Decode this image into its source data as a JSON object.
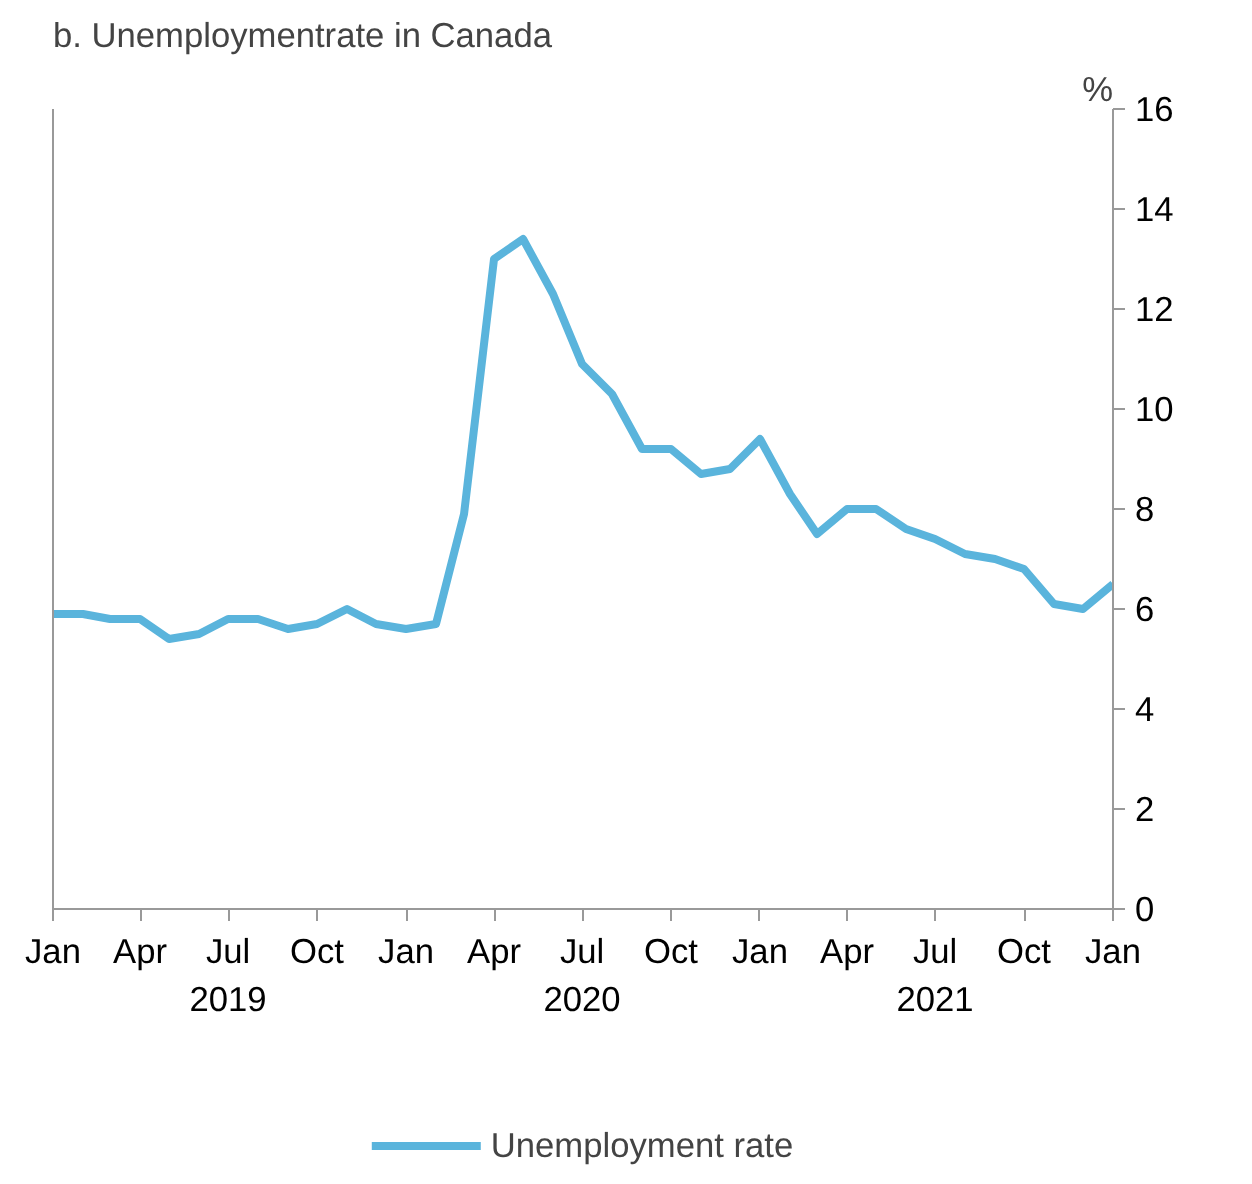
{
  "chart_data": {
    "type": "line",
    "title": "b. Unemploymentrate in Canada",
    "ylabel": "%",
    "x": [
      "2019-01",
      "2019-02",
      "2019-03",
      "2019-04",
      "2019-05",
      "2019-06",
      "2019-07",
      "2019-08",
      "2019-09",
      "2019-10",
      "2019-11",
      "2019-12",
      "2020-01",
      "2020-02",
      "2020-03",
      "2020-04",
      "2020-05",
      "2020-06",
      "2020-07",
      "2020-08",
      "2020-09",
      "2020-10",
      "2020-11",
      "2020-12",
      "2021-01",
      "2021-02",
      "2021-03",
      "2021-04",
      "2021-05",
      "2021-06",
      "2021-07",
      "2021-08",
      "2021-09",
      "2021-10",
      "2021-11",
      "2021-12",
      "2022-01"
    ],
    "series": [
      {
        "name": "Unemployment rate",
        "color": "#5ab4dc",
        "values": [
          5.9,
          5.9,
          5.8,
          5.8,
          5.4,
          5.5,
          5.8,
          5.8,
          5.6,
          5.7,
          6.0,
          5.7,
          5.6,
          5.7,
          7.9,
          13.0,
          13.4,
          12.3,
          10.9,
          10.3,
          9.2,
          9.2,
          8.7,
          8.8,
          9.4,
          8.3,
          7.5,
          8.0,
          8.0,
          7.6,
          7.4,
          7.1,
          7.0,
          6.8,
          6.1,
          6.0,
          6.5
        ]
      }
    ],
    "xlim": [
      "2019-01",
      "2022-01"
    ],
    "xticks": [
      {
        "value": "2019-01",
        "label": "Jan"
      },
      {
        "value": "2019-04",
        "label": "Apr"
      },
      {
        "value": "2019-07",
        "label": "Jul\n2019"
      },
      {
        "value": "2019-10",
        "label": "Oct"
      },
      {
        "value": "2020-01",
        "label": "Jan"
      },
      {
        "value": "2020-04",
        "label": "Apr"
      },
      {
        "value": "2020-07",
        "label": "Jul\n2020"
      },
      {
        "value": "2020-10",
        "label": "Oct"
      },
      {
        "value": "2021-01",
        "label": "Jan"
      },
      {
        "value": "2021-04",
        "label": "Apr"
      },
      {
        "value": "2021-07",
        "label": "Jul\n2021"
      },
      {
        "value": "2021-10",
        "label": "Oct"
      },
      {
        "value": "2022-01",
        "label": "Jan"
      }
    ],
    "ylim": [
      0,
      16
    ],
    "yticks": [
      0,
      2,
      4,
      6,
      8,
      10,
      12,
      14,
      16
    ],
    "grid": false,
    "legend": "bottom",
    "marker": "none",
    "line_style": "solid"
  }
}
